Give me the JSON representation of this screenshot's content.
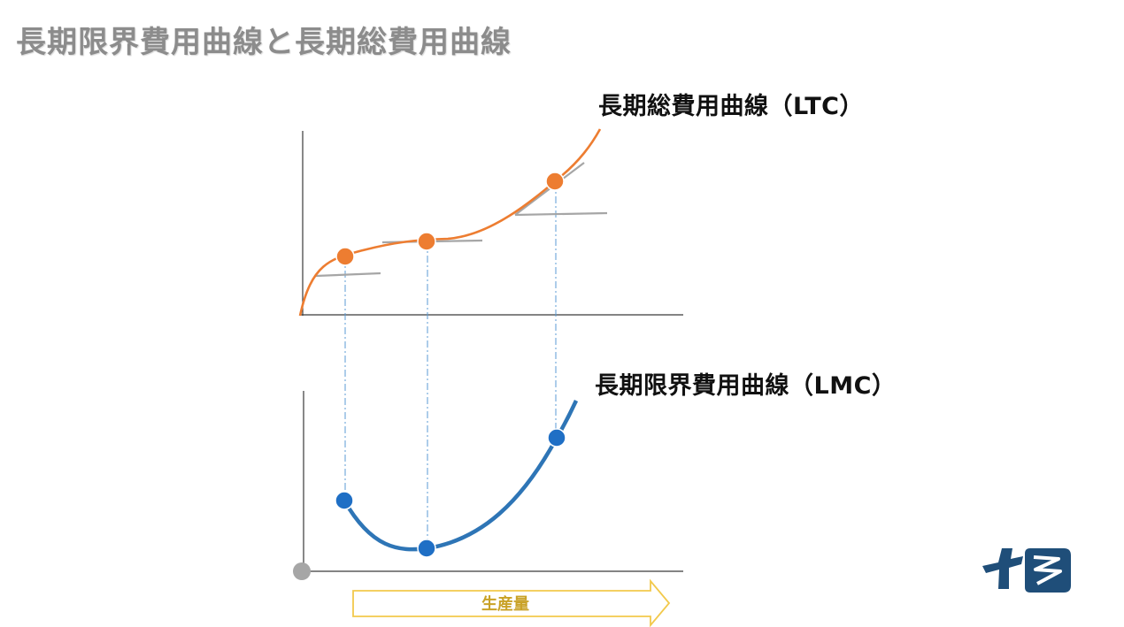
{
  "title": "長期限界費用曲線と長期総費用曲線",
  "labels": {
    "ltc": "長期総費用曲線（LTC）",
    "lmc": "長期限界費用曲線（LMC）",
    "quantity": "生産量"
  },
  "colors": {
    "title": "#8c8c8c",
    "ltc_curve": "#ed7d31",
    "lmc_curve": "#2e75b6",
    "lmc_point": "#1f6fc5",
    "tangent": "#a6a6a6",
    "guide": "#5b9bd5",
    "origin": "#a6a6a6",
    "arrow_border": "#f2c94c",
    "arrow_text": "#c9a227",
    "logo": "#1f4e79"
  },
  "icons": {
    "logo": "company-logo-icon",
    "arrow": "right-arrow-icon"
  }
}
